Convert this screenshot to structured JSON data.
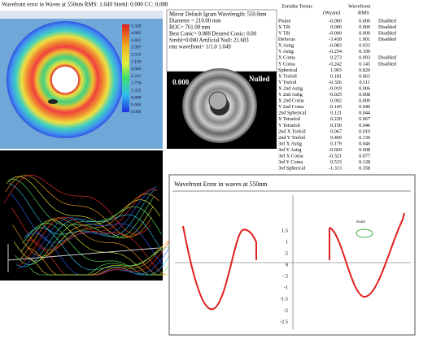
{
  "map": {
    "title": "Wavefront error in Waves at 550nm  RMS: 1.049 Strehl: 0.000 CC: 0.088",
    "colorbar": [
      "5.329",
      "4.885",
      "4.441",
      "3.997",
      "3.553",
      "3.109",
      "2.665",
      "2.221",
      "1.776",
      "1.332",
      "0.888",
      "0.444",
      "0.000"
    ]
  },
  "info": {
    "lines": [
      "Mirror Default Igram Wavelength: 550.0nm",
      "Diameter = 210.00 mm",
      "ROC= 761.00 mm",
      "Best Conic= 0.088 Desired Conic: 0.00",
      "Strehl=0.000  Artificial Null: 21.683",
      "rms wavefront= 1/1.0 1.049"
    ]
  },
  "nulled": {
    "value": "0.000",
    "label": "Nulled"
  },
  "zernike": {
    "title": "Zernike Terms",
    "col1": "(Wyant)",
    "col2_title": "Wavefront",
    "col2": "RMS",
    "rows": [
      [
        "Piston",
        "-0.000",
        "0.000",
        "Disabled"
      ],
      [
        "X Tilt",
        "0.000",
        "0.000",
        "Disabled"
      ],
      [
        "Y Tilt",
        "-0.000",
        "0.000",
        "Disabled"
      ],
      [
        "Defocus",
        "-3.418",
        "1.901",
        "Disabled"
      ],
      [
        "X Astig",
        "-0.083",
        "0.033"
      ],
      [
        "Y Astig",
        "-0.254",
        "0.100"
      ],
      [
        "X Coma",
        "0.273",
        "0.093",
        "Disabled"
      ],
      [
        "Y Coma",
        "-0.242",
        "0.145",
        "Disabled"
      ],
      [
        "Spherical",
        "1.903",
        "0.820"
      ],
      [
        "X Trefoil",
        "0.181",
        "0.063"
      ],
      [
        "Y Trefoil",
        "-0.326",
        "0.111"
      ],
      [
        "X 2nd Astig",
        "-0.019",
        "0.006"
      ],
      [
        "Y 2nd Astig",
        "-0.025",
        "0.008"
      ],
      [
        "X 2nd Coma",
        "0.002",
        "0.000"
      ],
      [
        "Y 2nd Coma",
        "-0.145",
        "0.040"
      ],
      [
        "2nd Spherical",
        "0.121",
        "0.044"
      ],
      [
        "X Tetrafoil",
        "0.220",
        "0.067"
      ],
      [
        "Y Tetrafoil",
        "0.150",
        "0.046"
      ],
      [
        "2nd X Trefoil",
        "0.067",
        "0.019"
      ],
      [
        "2nd Y Trefoil",
        "0.469",
        "0.130"
      ],
      [
        "3rd X Astig",
        "0.179",
        "0.046"
      ],
      [
        "3rd Y Astig",
        "-0.029",
        "0.008"
      ],
      [
        "3rd X Coma",
        "-0.321",
        "0.077"
      ],
      [
        "3rd Y Coma",
        "0.533",
        "0.128"
      ],
      [
        "3rd Spherical",
        "-1.313",
        "0.358"
      ]
    ]
  },
  "profile": {
    "title": "Wavefront Error in waves at 550nm",
    "legend": "Scale",
    "ylabels": [
      "1.5",
      "1",
      ".5",
      "0",
      "-.5",
      "-1",
      "-1.5",
      "-2",
      "-2.5"
    ]
  }
}
